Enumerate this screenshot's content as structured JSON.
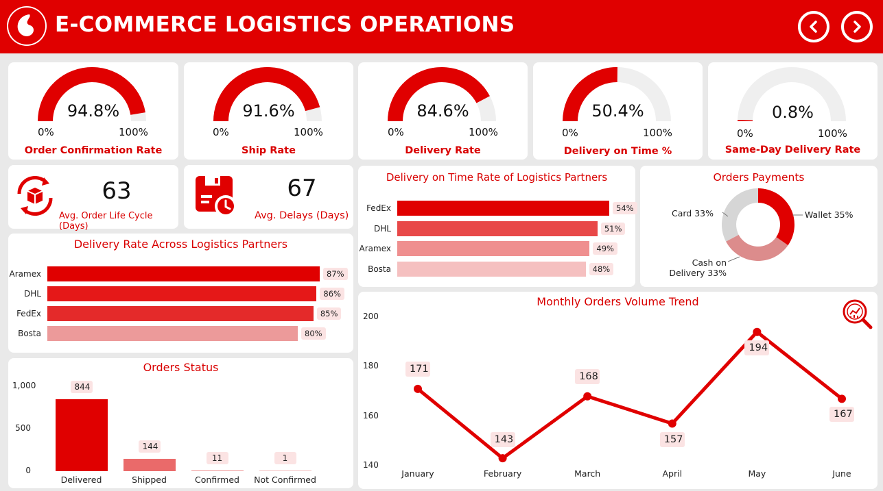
{
  "header": {
    "title": "E-COMMERCE LOGISTICS OPERATIONS",
    "brand_color": "#e00000",
    "nav_prev_icon": "chevron-left-icon",
    "nav_next_icon": "chevron-right-icon"
  },
  "gauges": [
    {
      "label": "Order Confirmation Rate",
      "value_text": "94.8%",
      "value": 94.8,
      "min_text": "0%",
      "max_text": "100%"
    },
    {
      "label": "Ship Rate",
      "value_text": "91.6%",
      "value": 91.6,
      "min_text": "0%",
      "max_text": "100%"
    },
    {
      "label": "Delivery Rate",
      "value_text": "84.6%",
      "value": 84.6,
      "min_text": "0%",
      "max_text": "100%"
    },
    {
      "label": "Delivery on Time %",
      "value_text": "50.4%",
      "value": 50.4,
      "min_text": "0%",
      "max_text": "100%"
    },
    {
      "label": "Same-Day Delivery Rate",
      "value_text": "0.8%",
      "value": 0.8,
      "min_text": "0%",
      "max_text": "100%"
    }
  ],
  "kpis": [
    {
      "value": "63",
      "label": "Avg. Order Life Cycle (Days)",
      "icon": "package-cycle-icon"
    },
    {
      "value": "67",
      "label": "Avg. Delays (Days)",
      "icon": "delay-clock-icon"
    }
  ],
  "chart_data": [
    {
      "type": "bar",
      "orientation": "horizontal",
      "title": "Delivery on Time Rate of Logistics Partners",
      "categories": [
        "FedEx",
        "DHL",
        "Aramex",
        "Bosta"
      ],
      "values": [
        54,
        51,
        49,
        48
      ],
      "labels": [
        "54%",
        "51%",
        "49%",
        "48%"
      ],
      "colors": [
        "#e00000",
        "#e84848",
        "#ef8f8f",
        "#f5c0c0"
      ]
    },
    {
      "type": "pie",
      "variant": "donut",
      "title": "Orders Payments",
      "categories": [
        "Wallet",
        "Cash on Delivery",
        "Card"
      ],
      "values": [
        35,
        33,
        33
      ],
      "labels": [
        "Wallet 35%",
        "Cash on Delivery 33%",
        "Card 33%"
      ],
      "colors": [
        "#e00000",
        "#dc8c8c",
        "#d6d6d6"
      ]
    },
    {
      "type": "bar",
      "orientation": "horizontal",
      "title": "Delivery Rate Across Logistics Partners",
      "categories": [
        "Aramex",
        "DHL",
        "FedEx",
        "Bosta"
      ],
      "values": [
        87,
        86,
        85,
        80
      ],
      "labels": [
        "87%",
        "86%",
        "85%",
        "80%"
      ],
      "colors": [
        "#e00000",
        "#e51818",
        "#e42a2a",
        "#ec9a9a"
      ]
    },
    {
      "type": "bar",
      "title": "Orders Status",
      "categories": [
        "Delivered",
        "Shipped",
        "Confirmed",
        "Not Confirmed"
      ],
      "values": [
        844,
        144,
        11,
        1
      ],
      "ylim": [
        0,
        1000
      ],
      "yticks": [
        "1,000",
        "500",
        "0"
      ],
      "colors": [
        "#e00000",
        "#ea6a6a",
        "#ef9a9a",
        "#f4c4c4"
      ]
    },
    {
      "type": "line",
      "title": "Monthly Orders Volume Trend",
      "categories": [
        "January",
        "February",
        "March",
        "April",
        "May",
        "June"
      ],
      "values": [
        171,
        143,
        168,
        157,
        194,
        167
      ],
      "ylim": [
        140,
        200
      ],
      "yticks": [
        "200",
        "180",
        "160",
        "140"
      ],
      "color": "#e00000",
      "icon": "analytics-magnifier-icon"
    }
  ]
}
